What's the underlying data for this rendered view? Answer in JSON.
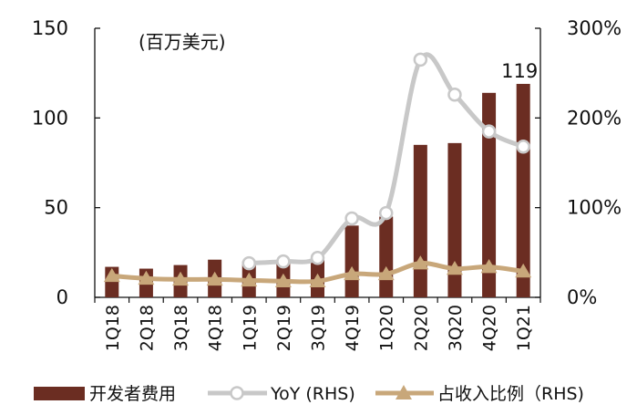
{
  "chart_data": {
    "type": "bar",
    "unit_label": "(百万美元)",
    "categories": [
      "1Q18",
      "2Q18",
      "3Q18",
      "4Q18",
      "1Q19",
      "2Q19",
      "3Q19",
      "4Q19",
      "1Q20",
      "2Q20",
      "3Q20",
      "4Q20",
      "1Q21"
    ],
    "left_axis": {
      "ylim": [
        0,
        150
      ],
      "ticks": [
        "0",
        "50",
        "100",
        "150"
      ]
    },
    "right_axis": {
      "ylim": [
        0,
        300
      ],
      "ticks": [
        "0%",
        "100%",
        "200%",
        "300%"
      ]
    },
    "series": [
      {
        "name": "开发者费用",
        "type": "bar",
        "axis": "left",
        "color": "#6B2D22",
        "values": [
          17,
          16,
          18,
          21,
          20,
          20,
          21,
          40,
          45,
          85,
          86,
          114,
          119
        ]
      },
      {
        "name": "YoY (RHS)",
        "type": "line",
        "axis": "right",
        "color": "#C8C8C8",
        "marker": "circle",
        "values": [
          null,
          null,
          null,
          null,
          38,
          40,
          44,
          88,
          94,
          265,
          226,
          185,
          168
        ]
      },
      {
        "name": "占收入比例（RHS)",
        "type": "line",
        "axis": "right",
        "color": "#C8A77A",
        "marker": "triangle",
        "values": [
          24,
          21,
          20,
          20,
          19,
          18,
          18,
          26,
          26,
          38,
          32,
          34,
          29
        ]
      }
    ],
    "annotations": [
      {
        "category": "1Q21",
        "text": "119"
      }
    ]
  }
}
